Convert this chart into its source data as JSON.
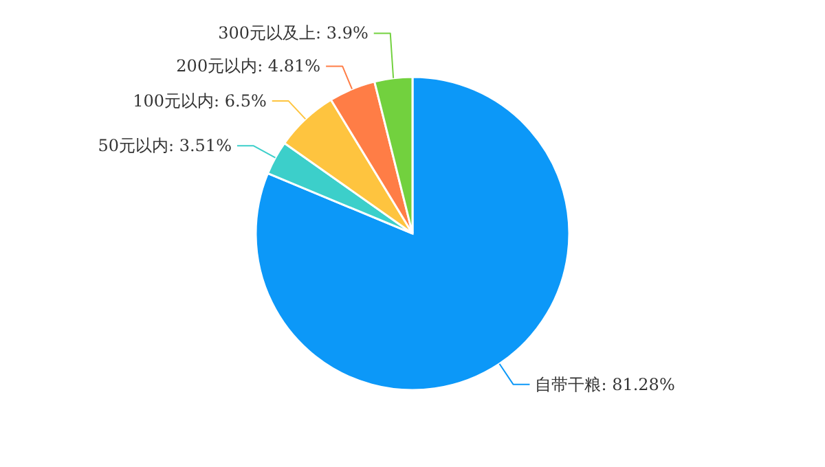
{
  "chart_data": {
    "type": "pie",
    "categories": [
      "自带干粮",
      "50元以内",
      "100元以内",
      "200元以内",
      "300元以及上"
    ],
    "values": [
      81.28,
      3.51,
      6.5,
      4.81,
      3.9
    ],
    "value_labels": [
      "81.28%",
      "3.51%",
      "6.5%",
      "4.81%",
      "3.9%"
    ],
    "colors": [
      "#0c98f8",
      "#3ccfca",
      "#fec43f",
      "#ff7d46",
      "#72d13e"
    ]
  }
}
